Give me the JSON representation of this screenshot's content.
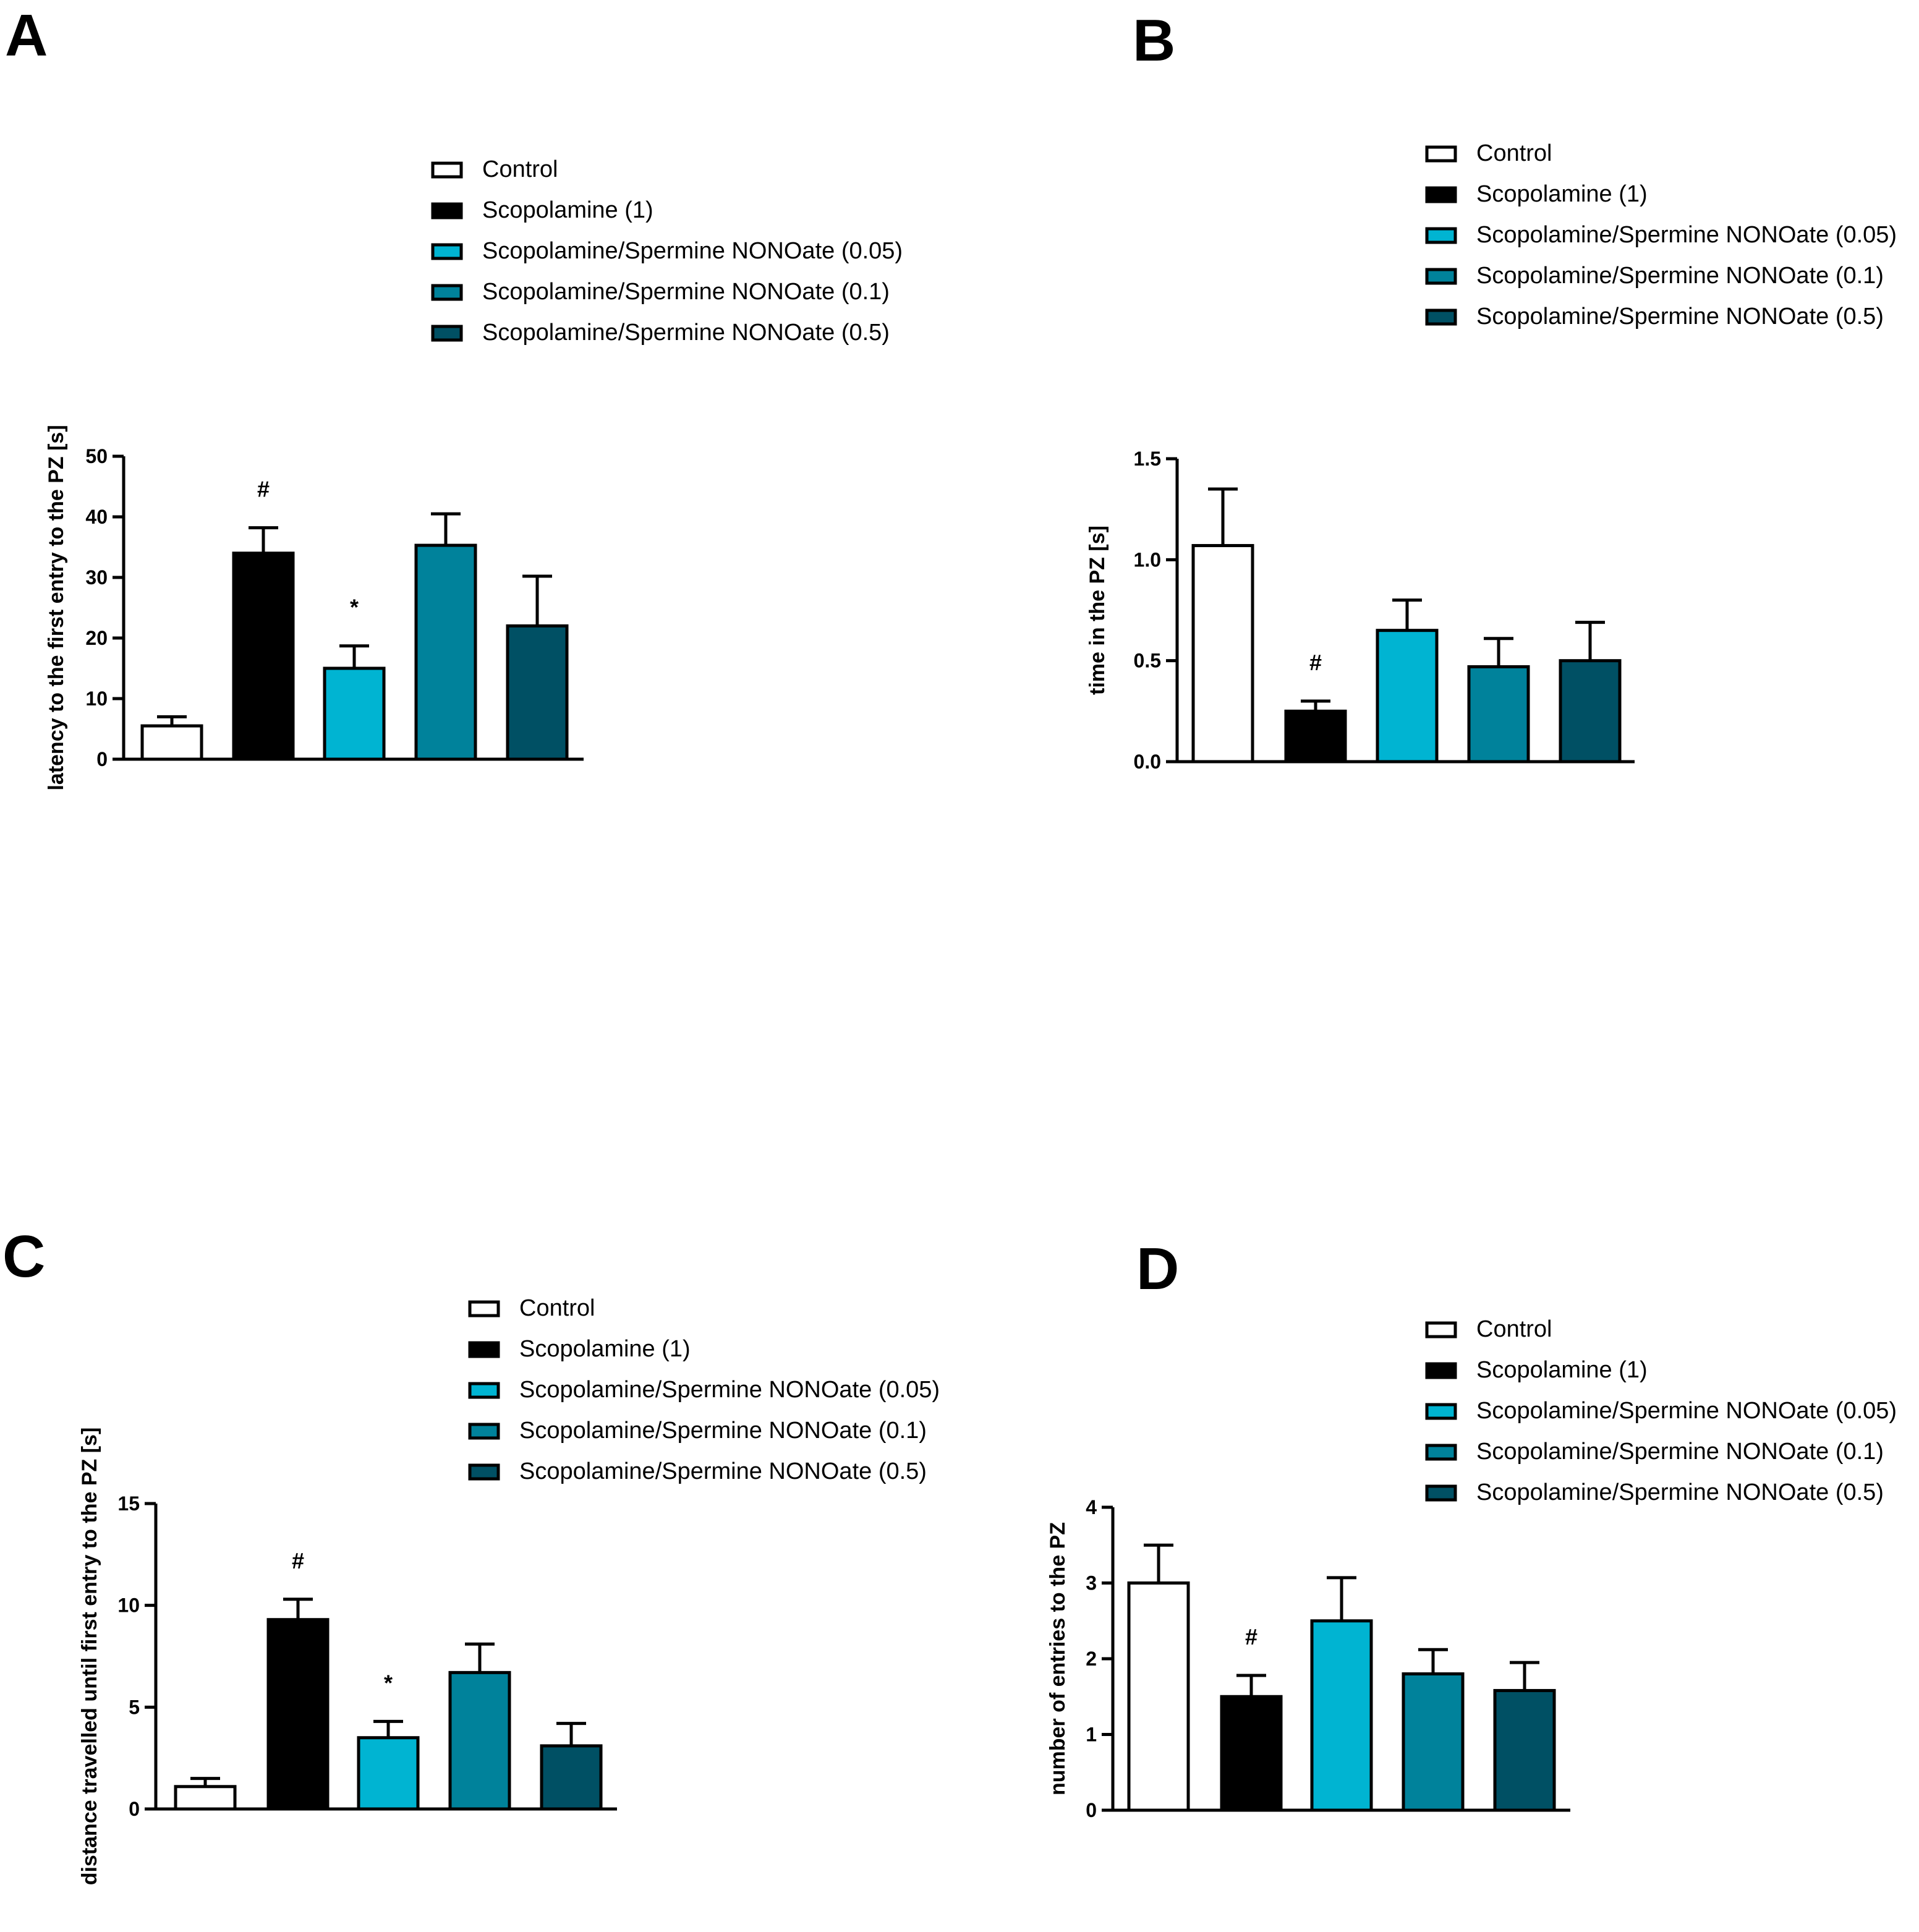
{
  "colors": {
    "Control": "#ffffff",
    "Scopolamine (1)": "#000000",
    "Scopolamine/Spermine NONOate (0.05)": "#00b4d2",
    "Scopolamine/Spermine NONOate (0.1)": "#00829b",
    "Scopolamine/Spermine NONOate (0.5)": "#005064"
  },
  "chart_data": [
    {
      "panel": "A",
      "type": "bar",
      "categories": [
        "Control",
        "Scopolamine (1)",
        "Scopolamine/Spermine NONOate (0.05)",
        "Scopolamine/Spermine NONOate (0.1)",
        "Scopolamine/Spermine NONOate (0.5)"
      ],
      "values": [
        5.5,
        34,
        15,
        35.3,
        22
      ],
      "errors": [
        1.5,
        4.2,
        3.7,
        5.2,
        8.2
      ],
      "annotations": [
        "",
        "#",
        "*",
        "",
        ""
      ],
      "ylabel": "latency to the first entry to the PZ [s]",
      "ylim": [
        0,
        50
      ],
      "yticks": [
        "0",
        "10",
        "20",
        "30",
        "40",
        "50"
      ],
      "legend": [
        "Control",
        "Scopolamine (1)",
        "Scopolamine/Spermine NONOate (0.05)",
        "Scopolamine/Spermine NONOate (0.1)",
        "Scopolamine/Spermine NONOate (0.5)"
      ],
      "legend_position": "top"
    },
    {
      "panel": "B",
      "type": "bar",
      "categories": [
        "Control",
        "Scopolamine (1)",
        "Scopolamine/Spermine NONOate (0.05)",
        "Scopolamine/Spermine NONOate (0.1)",
        "Scopolamine/Spermine NONOate (0.5)"
      ],
      "values": [
        1.07,
        0.25,
        0.65,
        0.47,
        0.5
      ],
      "errors": [
        0.28,
        0.05,
        0.15,
        0.14,
        0.19
      ],
      "annotations": [
        "",
        "#",
        "",
        "",
        ""
      ],
      "ylabel": "time in the PZ [s]",
      "ylim": [
        0,
        1.5
      ],
      "yticks": [
        "0.0",
        "0.5",
        "1.0",
        "1.5"
      ],
      "legend": [
        "Control",
        "Scopolamine (1)",
        "Scopolamine/Spermine NONOate (0.05)",
        "Scopolamine/Spermine NONOate (0.1)",
        "Scopolamine/Spermine NONOate (0.5)"
      ],
      "legend_position": "top"
    },
    {
      "panel": "C",
      "type": "bar",
      "categories": [
        "Control",
        "Scopolamine (1)",
        "Scopolamine/Spermine NONOate (0.05)",
        "Scopolamine/Spermine NONOate (0.1)",
        "Scopolamine/Spermine NONOate (0.5)"
      ],
      "values": [
        1.1,
        9.3,
        3.5,
        6.7,
        3.1
      ],
      "errors": [
        0.4,
        1.0,
        0.8,
        1.4,
        1.1
      ],
      "annotations": [
        "",
        "#",
        "*",
        "",
        ""
      ],
      "ylabel": "distance travelled until first entry to the PZ [s]",
      "ylim": [
        0,
        15
      ],
      "yticks": [
        "0",
        "5",
        "10",
        "15"
      ],
      "legend": [
        "Control",
        "Scopolamine (1)",
        "Scopolamine/Spermine NONOate (0.05)",
        "Scopolamine/Spermine NONOate (0.1)",
        "Scopolamine/Spermine NONOate (0.5)"
      ],
      "legend_position": "top"
    },
    {
      "panel": "D",
      "type": "bar",
      "categories": [
        "Control",
        "Scopolamine (1)",
        "Scopolamine/Spermine NONOate (0.05)",
        "Scopolamine/Spermine NONOate (0.1)",
        "Scopolamine/Spermine NONOate (0.5)"
      ],
      "values": [
        3.0,
        1.5,
        2.5,
        1.8,
        1.58
      ],
      "errors": [
        0.5,
        0.28,
        0.57,
        0.32,
        0.37
      ],
      "annotations": [
        "",
        "#",
        "",
        "",
        ""
      ],
      "ylabel": "number of entries to the PZ",
      "ylim": [
        0,
        4
      ],
      "yticks": [
        "0",
        "1",
        "2",
        "3",
        "4"
      ],
      "legend": [
        "Control",
        "Scopolamine (1)",
        "Scopolamine/Spermine NONOate (0.05)",
        "Scopolamine/Spermine NONOate (0.1)",
        "Scopolamine/Spermine NONOate (0.5)"
      ],
      "legend_position": "top"
    }
  ]
}
